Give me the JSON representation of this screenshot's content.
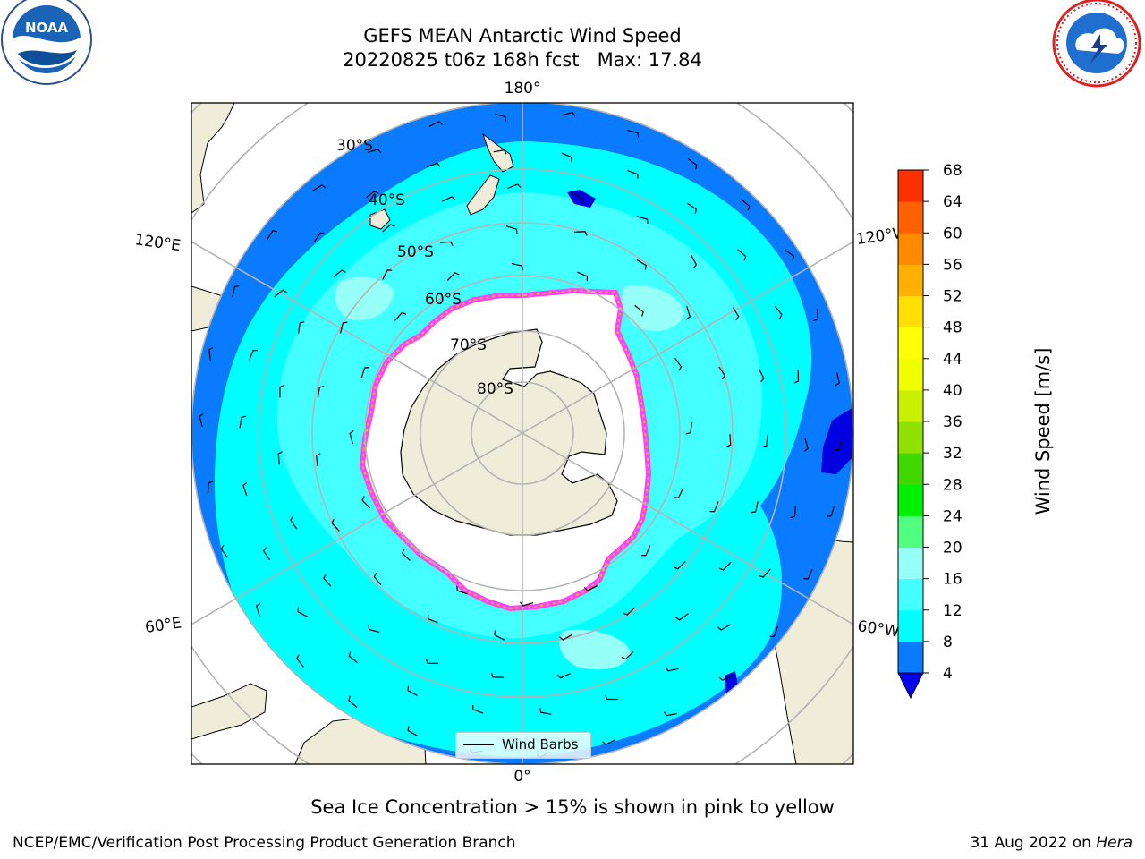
{
  "title": {
    "line1": "GEFS MEAN Antarctic Wind Speed",
    "line2": "20220825 t06z 168h fcst   Max: 17.84"
  },
  "map": {
    "projection": "south-polar-stereographic",
    "meridian_labels": {
      "top": "180°",
      "bottom": "0°",
      "upper_left": "120°E",
      "upper_right": "120°W",
      "lower_left": "60°E",
      "lower_right": "60°W"
    },
    "latitude_labels": [
      "30°S",
      "40°S",
      "50°S",
      "60°S",
      "70°S",
      "80°S"
    ],
    "colors": {
      "land": "#efedd9",
      "ocean_4_8": "#0a7bff",
      "ocean_8_12": "#00ffff",
      "ocean_12_16": "#44ffff",
      "ocean_16_20": "#96fff8",
      "sea_ice_edge": "#ff40ff",
      "sea_ice_inner": "#ffb020",
      "grid": "#b4b4b4"
    },
    "legend": {
      "label": "Wind Barbs"
    }
  },
  "colorbar": {
    "label": "Wind Speed [m/s]",
    "ticks": [
      "4",
      "8",
      "12",
      "16",
      "20",
      "24",
      "28",
      "32",
      "36",
      "40",
      "44",
      "48",
      "52",
      "56",
      "60",
      "64",
      "68"
    ],
    "colors": [
      "#0a7bff",
      "#00ffff",
      "#44ffff",
      "#96fff8",
      "#50ff80",
      "#00f000",
      "#40d800",
      "#90e000",
      "#c8f000",
      "#f0ff00",
      "#ffff00",
      "#ffe000",
      "#ffb000",
      "#ff8a00",
      "#ff6000",
      "#ff3000",
      "#ff0000"
    ],
    "extend_color": "#0000f0"
  },
  "footnote": "Sea Ice Concentration > 15% is shown in pink to yellow",
  "credits": {
    "left": "NCEP/EMC/Verification Post Processing Product Generation Branch",
    "right_prefix": "31 Aug 2022 on ",
    "right_machine": "Hera"
  },
  "logos": {
    "noaa_text": "NOAA",
    "noaa_ring": "NATIONAL OCEANIC AND ATMOSPHERIC ADMINISTRATION · U.S. DEPARTMENT OF COMMERCE",
    "nws_ring": "NATIONAL WEATHER SERVICE"
  }
}
